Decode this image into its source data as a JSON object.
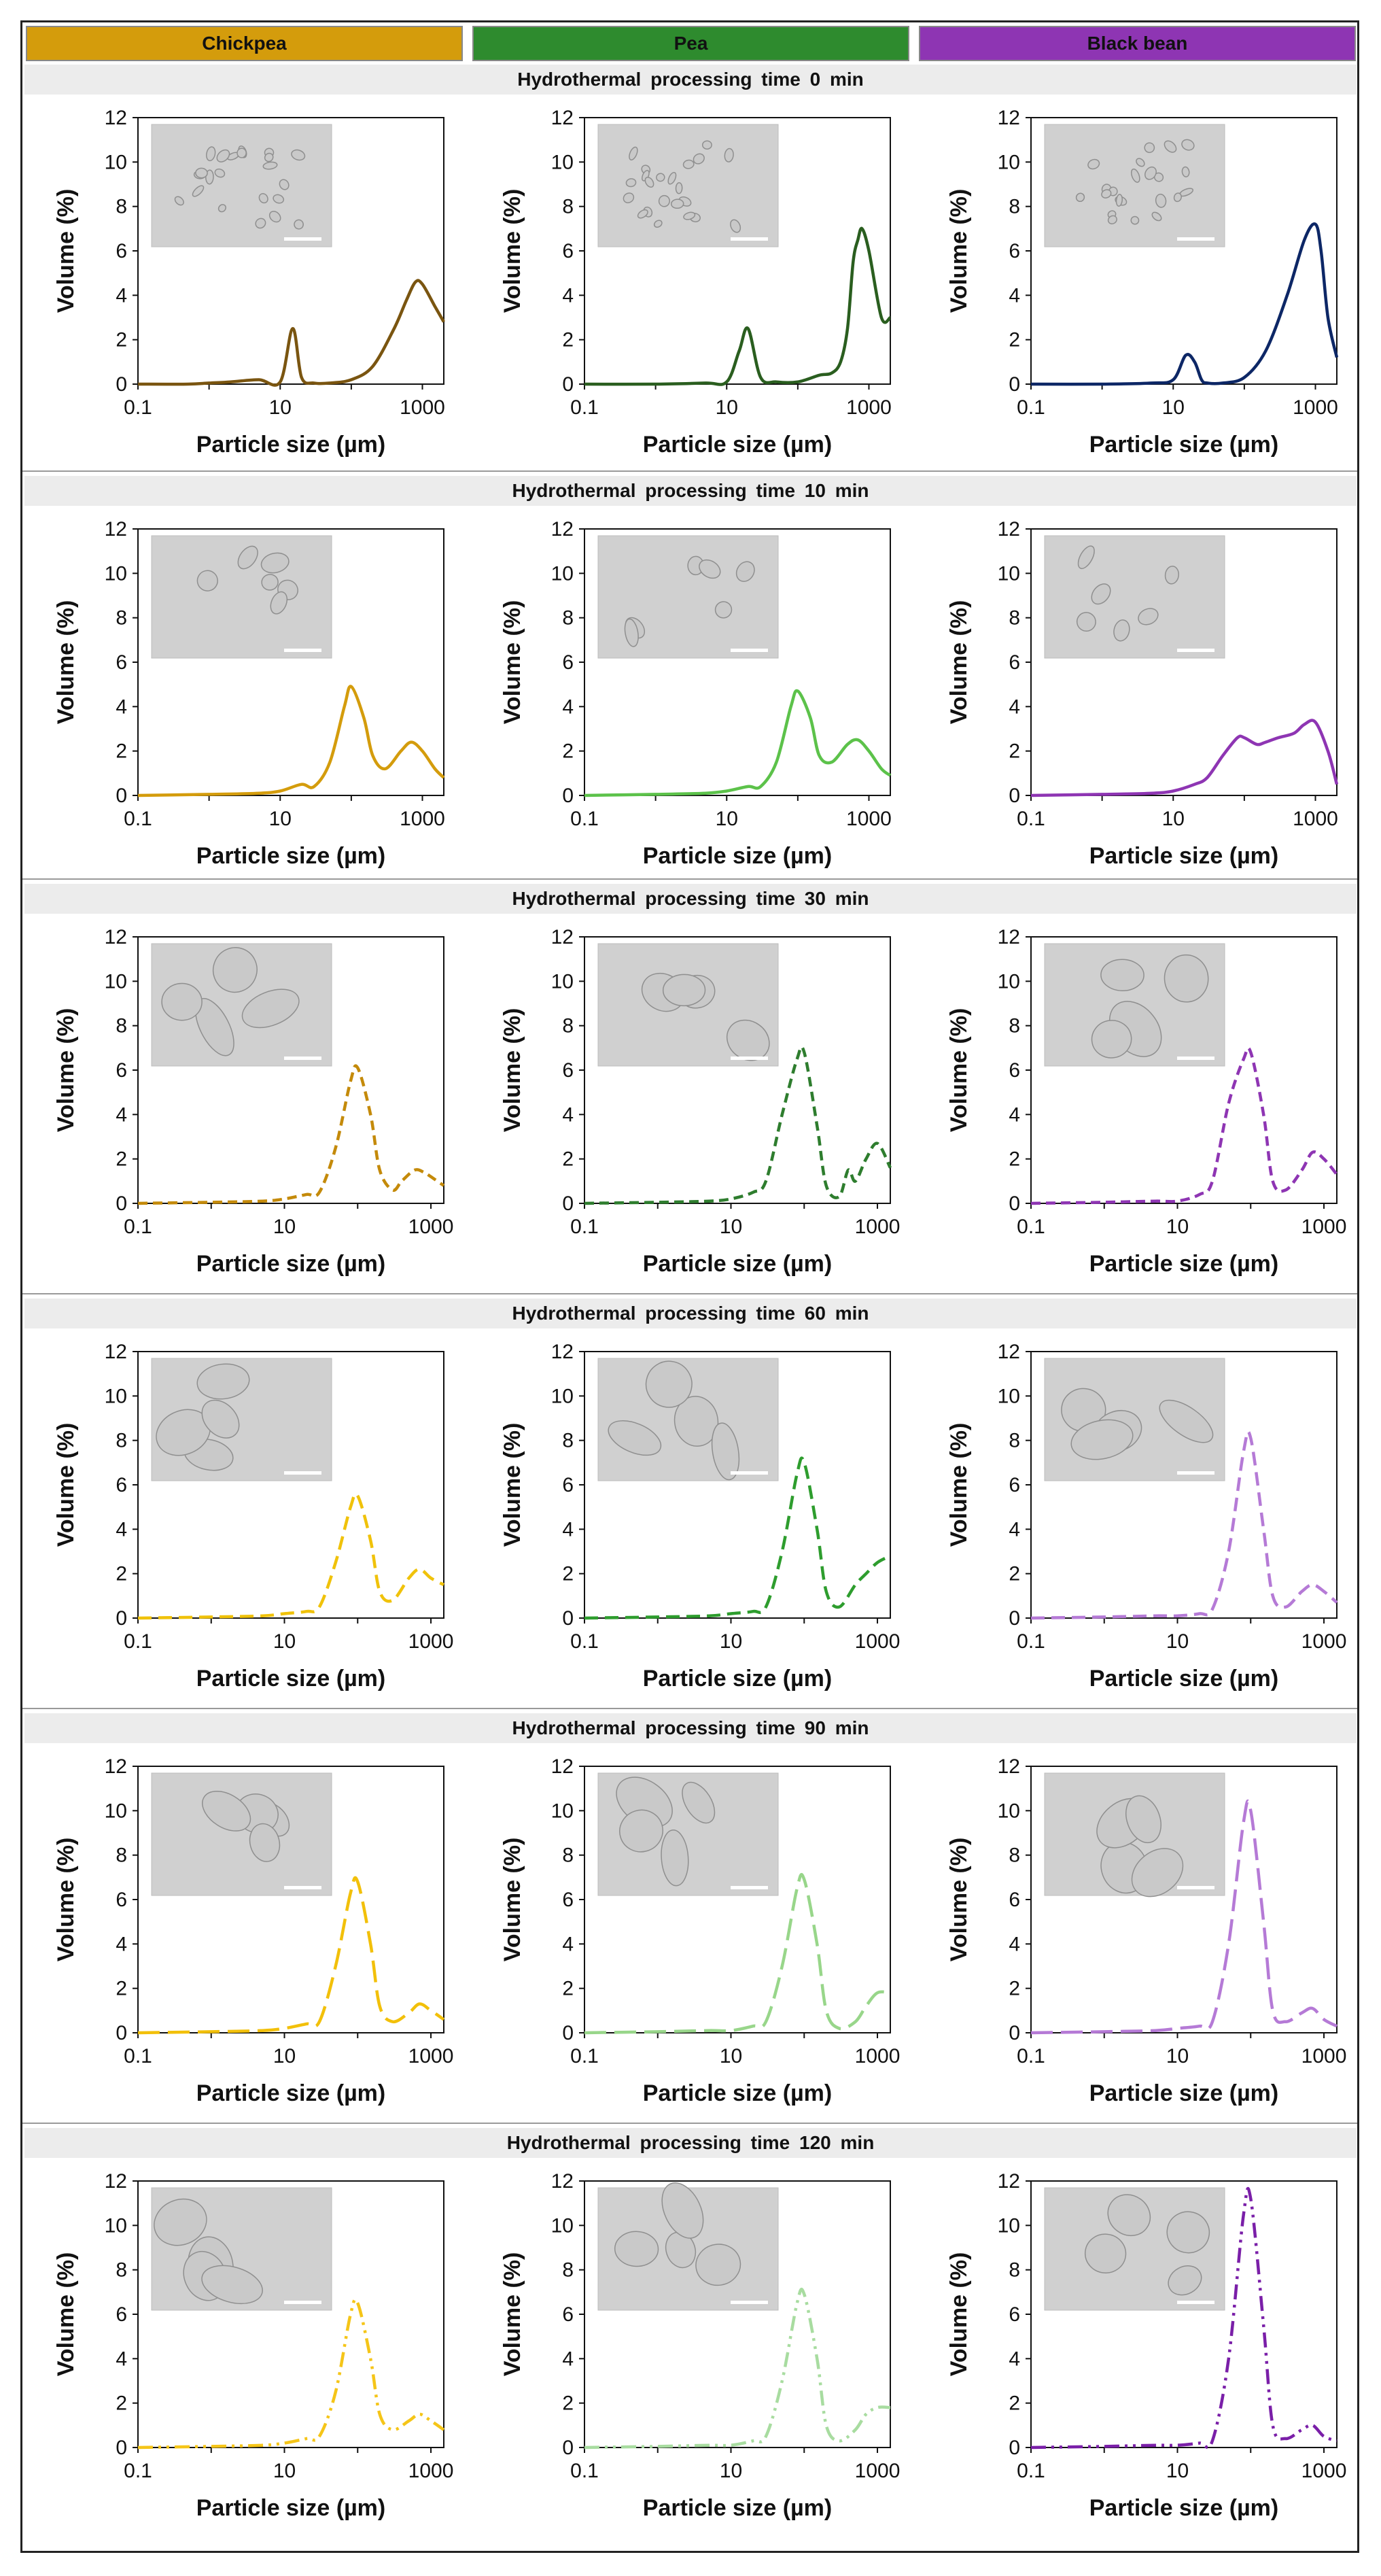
{
  "columns": [
    {
      "name": "Chickpea",
      "color": "#d49c0c"
    },
    {
      "name": "Pea",
      "color": "#2e8b2e"
    },
    {
      "name": "Black bean",
      "color": "#8e35b3"
    }
  ],
  "rows": [
    {
      "label": "Hydrothermal processing time 0 min"
    },
    {
      "label": "Hydrothermal processing time 10 min"
    },
    {
      "label": "Hydrothermal processing time 30 min"
    },
    {
      "label": "Hydrothermal processing time 60 min"
    },
    {
      "label": "Hydrothermal processing time 90 min"
    },
    {
      "label": "Hydrothermal processing time 120 min"
    }
  ],
  "axis": {
    "xlabel": "Particle size (µm)",
    "ylabel": "Volume (%)",
    "yticks": [
      "0",
      "2",
      "4",
      "6",
      "8",
      "10",
      "12"
    ],
    "xticks": [
      "0.1",
      "10",
      "1000"
    ]
  },
  "chart_data": [
    {
      "type": "line",
      "column": "Chickpea",
      "time_min": 0,
      "color": "#7a5510",
      "dash": "solid",
      "xscale": "log",
      "xlim": [
        0.1,
        2000
      ],
      "ylim": [
        0,
        12
      ],
      "inset": "micrograph",
      "x": [
        0.1,
        0.5,
        1,
        2,
        5,
        10,
        15,
        20,
        30,
        50,
        100,
        200,
        400,
        600,
        800,
        1000,
        1500,
        2000
      ],
      "y": [
        0,
        0,
        0.05,
        0.1,
        0.2,
        0.1,
        2.5,
        0.3,
        0.05,
        0.05,
        0.2,
        0.8,
        2.5,
        3.8,
        4.6,
        4.5,
        3.5,
        2.8
      ]
    },
    {
      "type": "line",
      "column": "Pea",
      "time_min": 0,
      "color": "#2a5e1f",
      "dash": "solid",
      "xscale": "log",
      "xlim": [
        0.1,
        2000
      ],
      "ylim": [
        0,
        12
      ],
      "inset": "micrograph",
      "x": [
        0.1,
        1,
        5,
        10,
        15,
        20,
        30,
        50,
        100,
        200,
        300,
        400,
        500,
        600,
        700,
        800,
        1000,
        1500,
        2000
      ],
      "y": [
        0,
        0,
        0.05,
        0.1,
        1.5,
        2.5,
        0.3,
        0.1,
        0.1,
        0.4,
        0.5,
        1.0,
        2.5,
        5.5,
        6.5,
        7.0,
        6.0,
        3.0,
        3.0
      ]
    },
    {
      "type": "line",
      "column": "Black bean",
      "time_min": 0,
      "color": "#0d2766",
      "dash": "solid",
      "xscale": "log",
      "xlim": [
        0.1,
        2000
      ],
      "ylim": [
        0,
        12
      ],
      "inset": "micrograph",
      "x": [
        0.1,
        1,
        5,
        10,
        15,
        20,
        25,
        30,
        50,
        100,
        200,
        400,
        700,
        1000,
        1200,
        1500,
        2000
      ],
      "y": [
        0,
        0,
        0.05,
        0.2,
        1.3,
        1.0,
        0.2,
        0.05,
        0.05,
        0.3,
        1.5,
        4.0,
        6.5,
        7.2,
        6.0,
        3.0,
        1.2
      ]
    },
    {
      "type": "line",
      "column": "Chickpea",
      "time_min": 10,
      "color": "#d49c0c",
      "dash": "solid",
      "xscale": "log",
      "xlim": [
        0.1,
        2000
      ],
      "ylim": [
        0,
        12
      ],
      "inset": "micrograph",
      "x": [
        0.1,
        1,
        5,
        10,
        20,
        30,
        50,
        80,
        100,
        150,
        200,
        300,
        500,
        700,
        1000,
        1500,
        2000
      ],
      "y": [
        0,
        0.05,
        0.1,
        0.2,
        0.5,
        0.4,
        1.5,
        4.0,
        4.9,
        3.5,
        1.8,
        1.2,
        2.0,
        2.4,
        2.0,
        1.2,
        0.8
      ]
    },
    {
      "type": "line",
      "column": "Pea",
      "time_min": 10,
      "color": "#5cc24a",
      "dash": "solid",
      "xscale": "log",
      "xlim": [
        0.1,
        2000
      ],
      "ylim": [
        0,
        12
      ],
      "inset": "micrograph",
      "x": [
        0.1,
        1,
        5,
        10,
        20,
        30,
        50,
        80,
        100,
        150,
        200,
        300,
        500,
        700,
        1000,
        1500,
        2000
      ],
      "y": [
        0,
        0.05,
        0.1,
        0.2,
        0.4,
        0.4,
        1.5,
        4.0,
        4.7,
        3.5,
        1.8,
        1.5,
        2.3,
        2.5,
        2.0,
        1.2,
        0.9
      ]
    },
    {
      "type": "line",
      "column": "Black bean",
      "time_min": 10,
      "color": "#8e35b3",
      "dash": "solid",
      "xscale": "log",
      "xlim": [
        0.1,
        2000
      ],
      "ylim": [
        0,
        12
      ],
      "inset": "micrograph",
      "x": [
        0.1,
        1,
        5,
        10,
        20,
        30,
        50,
        80,
        100,
        150,
        200,
        300,
        500,
        700,
        1000,
        1500,
        2000
      ],
      "y": [
        0,
        0.05,
        0.1,
        0.2,
        0.5,
        0.8,
        1.8,
        2.6,
        2.6,
        2.3,
        2.4,
        2.6,
        2.8,
        3.2,
        3.3,
        2.0,
        0.5
      ]
    },
    {
      "type": "line",
      "column": "Chickpea",
      "time_min": 30,
      "color": "#c48a0a",
      "dash": "short-dash",
      "xscale": "log",
      "xlim": [
        0.1,
        1500
      ],
      "ylim": [
        0,
        12
      ],
      "inset": "micrograph",
      "x": [
        0.1,
        1,
        5,
        10,
        20,
        30,
        50,
        80,
        100,
        150,
        200,
        300,
        400,
        600,
        800,
        1000,
        1500
      ],
      "y": [
        0,
        0.05,
        0.1,
        0.2,
        0.4,
        0.5,
        2.5,
        5.5,
        6.1,
        4.0,
        1.5,
        0.6,
        1.0,
        1.5,
        1.4,
        1.2,
        0.8
      ]
    },
    {
      "type": "line",
      "column": "Pea",
      "time_min": 30,
      "color": "#2e7d2e",
      "dash": "short-dash",
      "xscale": "log",
      "xlim": [
        0.1,
        1500
      ],
      "ylim": [
        0,
        12
      ],
      "inset": "micrograph",
      "x": [
        0.1,
        1,
        5,
        10,
        20,
        30,
        50,
        80,
        100,
        150,
        200,
        300,
        400,
        500,
        700,
        1000,
        1500
      ],
      "y": [
        0,
        0.05,
        0.1,
        0.2,
        0.5,
        1.0,
        4.0,
        6.5,
        6.8,
        3.5,
        0.8,
        0.3,
        1.5,
        1.0,
        2.0,
        2.7,
        1.6
      ]
    },
    {
      "type": "line",
      "column": "Black bean",
      "time_min": 30,
      "color": "#8e35b3",
      "dash": "short-dash",
      "xscale": "log",
      "xlim": [
        0.1,
        1500
      ],
      "ylim": [
        0,
        12
      ],
      "inset": "micrograph",
      "x": [
        0.1,
        1,
        5,
        10,
        20,
        30,
        50,
        80,
        100,
        150,
        200,
        300,
        500,
        700,
        1000,
        1500
      ],
      "y": [
        0,
        0.05,
        0.1,
        0.1,
        0.4,
        1.0,
        4.5,
        6.5,
        6.8,
        4.0,
        1.0,
        0.6,
        1.5,
        2.3,
        2.0,
        1.3
      ]
    },
    {
      "type": "line",
      "column": "Chickpea",
      "time_min": 60,
      "color": "#f0c20a",
      "dash": "dash",
      "xscale": "log",
      "xlim": [
        0.1,
        1500
      ],
      "ylim": [
        0,
        12
      ],
      "inset": "micrograph",
      "x": [
        0.1,
        1,
        5,
        10,
        20,
        30,
        50,
        80,
        100,
        150,
        200,
        300,
        500,
        700,
        1000,
        1500
      ],
      "y": [
        0,
        0.05,
        0.1,
        0.2,
        0.3,
        0.5,
        2.5,
        5.0,
        5.5,
        3.5,
        1.2,
        0.8,
        1.8,
        2.2,
        1.8,
        1.5
      ]
    },
    {
      "type": "line",
      "column": "Pea",
      "time_min": 60,
      "color": "#2e9d2e",
      "dash": "dash",
      "xscale": "log",
      "xlim": [
        0.1,
        1500
      ],
      "ylim": [
        0,
        12
      ],
      "inset": "micrograph",
      "x": [
        0.1,
        1,
        5,
        10,
        20,
        30,
        50,
        80,
        100,
        150,
        200,
        300,
        500,
        700,
        1000,
        1500
      ],
      "y": [
        0,
        0.05,
        0.1,
        0.2,
        0.3,
        0.5,
        3.0,
        6.5,
        7.0,
        4.0,
        1.2,
        0.5,
        1.5,
        2.0,
        2.5,
        2.8
      ]
    },
    {
      "type": "line",
      "column": "Black bean",
      "time_min": 60,
      "color": "#b57ad6",
      "dash": "dash",
      "xscale": "log",
      "xlim": [
        0.1,
        1500
      ],
      "ylim": [
        0,
        12
      ],
      "inset": "micrograph",
      "x": [
        0.1,
        1,
        5,
        10,
        20,
        30,
        50,
        80,
        100,
        150,
        200,
        300,
        500,
        700,
        1000,
        1500
      ],
      "y": [
        0,
        0.05,
        0.1,
        0.1,
        0.2,
        0.4,
        3.0,
        7.5,
        8.1,
        4.0,
        1.0,
        0.5,
        1.2,
        1.5,
        1.2,
        0.7
      ]
    },
    {
      "type": "line",
      "column": "Chickpea",
      "time_min": 90,
      "color": "#f2c00a",
      "dash": "long-dash",
      "xscale": "log",
      "xlim": [
        0.1,
        1500
      ],
      "ylim": [
        0,
        12
      ],
      "inset": "micrograph",
      "x": [
        0.1,
        1,
        5,
        10,
        20,
        30,
        50,
        80,
        100,
        150,
        200,
        300,
        500,
        700,
        1000,
        1500
      ],
      "y": [
        0,
        0.05,
        0.1,
        0.2,
        0.4,
        0.5,
        3.0,
        6.3,
        6.8,
        4.0,
        1.2,
        0.5,
        0.9,
        1.3,
        1.0,
        0.6
      ]
    },
    {
      "type": "line",
      "column": "Pea",
      "time_min": 90,
      "color": "#98d68a",
      "dash": "long-dash",
      "xscale": "log",
      "xlim": [
        0.1,
        1500
      ],
      "ylim": [
        0,
        12
      ],
      "inset": "micrograph",
      "x": [
        0.1,
        1,
        5,
        10,
        20,
        30,
        50,
        80,
        100,
        150,
        200,
        300,
        500,
        700,
        1000,
        1500
      ],
      "y": [
        0,
        0.05,
        0.1,
        0.1,
        0.3,
        0.5,
        3.0,
        6.5,
        6.9,
        4.0,
        1.0,
        0.2,
        0.5,
        1.2,
        1.8,
        1.8
      ]
    },
    {
      "type": "line",
      "column": "Black bean",
      "time_min": 90,
      "color": "#b57ad6",
      "dash": "long-dash",
      "xscale": "log",
      "xlim": [
        0.1,
        1500
      ],
      "ylim": [
        0,
        12
      ],
      "inset": "micrograph",
      "x": [
        0.1,
        1,
        5,
        10,
        20,
        30,
        50,
        80,
        100,
        150,
        200,
        300,
        500,
        700,
        1000,
        1500
      ],
      "y": [
        0,
        0.05,
        0.1,
        0.2,
        0.3,
        0.5,
        4.0,
        9.5,
        10.0,
        5.0,
        1.0,
        0.5,
        0.9,
        1.1,
        0.6,
        0.3
      ]
    },
    {
      "type": "line",
      "column": "Chickpea",
      "time_min": 120,
      "color": "#f5c518",
      "dash": "dash-dot-dot",
      "xscale": "log",
      "xlim": [
        0.1,
        1500
      ],
      "ylim": [
        0,
        12
      ],
      "inset": "micrograph",
      "x": [
        0.1,
        1,
        5,
        10,
        20,
        30,
        50,
        80,
        100,
        150,
        200,
        300,
        500,
        700,
        1000,
        1500
      ],
      "y": [
        0,
        0.05,
        0.1,
        0.2,
        0.4,
        0.5,
        2.5,
        6.0,
        6.5,
        4.0,
        1.5,
        0.8,
        1.2,
        1.5,
        1.2,
        0.8
      ]
    },
    {
      "type": "line",
      "column": "Pea",
      "time_min": 120,
      "color": "#a8dca0",
      "dash": "dash-dot-dot",
      "xscale": "log",
      "xlim": [
        0.1,
        1500
      ],
      "ylim": [
        0,
        12
      ],
      "inset": "micrograph",
      "x": [
        0.1,
        1,
        5,
        10,
        20,
        30,
        50,
        80,
        100,
        150,
        200,
        300,
        500,
        700,
        1000,
        1500
      ],
      "y": [
        0,
        0.05,
        0.1,
        0.1,
        0.3,
        0.5,
        3.0,
        6.5,
        6.9,
        4.0,
        1.0,
        0.3,
        0.8,
        1.5,
        1.8,
        1.8
      ]
    },
    {
      "type": "line",
      "column": "Black bean",
      "time_min": 120,
      "color": "#7a1fa8",
      "dash": "dash-dot-dot",
      "xscale": "log",
      "xlim": [
        0.1,
        1500
      ],
      "ylim": [
        0,
        12
      ],
      "inset": "micrograph",
      "x": [
        0.1,
        1,
        5,
        10,
        20,
        30,
        50,
        80,
        100,
        150,
        200,
        300,
        500,
        700,
        1000,
        1500
      ],
      "y": [
        0,
        0.05,
        0.1,
        0.1,
        0.2,
        0.3,
        4.0,
        10.5,
        11.2,
        5.5,
        1.0,
        0.4,
        0.8,
        1.0,
        0.5,
        0.3
      ]
    }
  ]
}
